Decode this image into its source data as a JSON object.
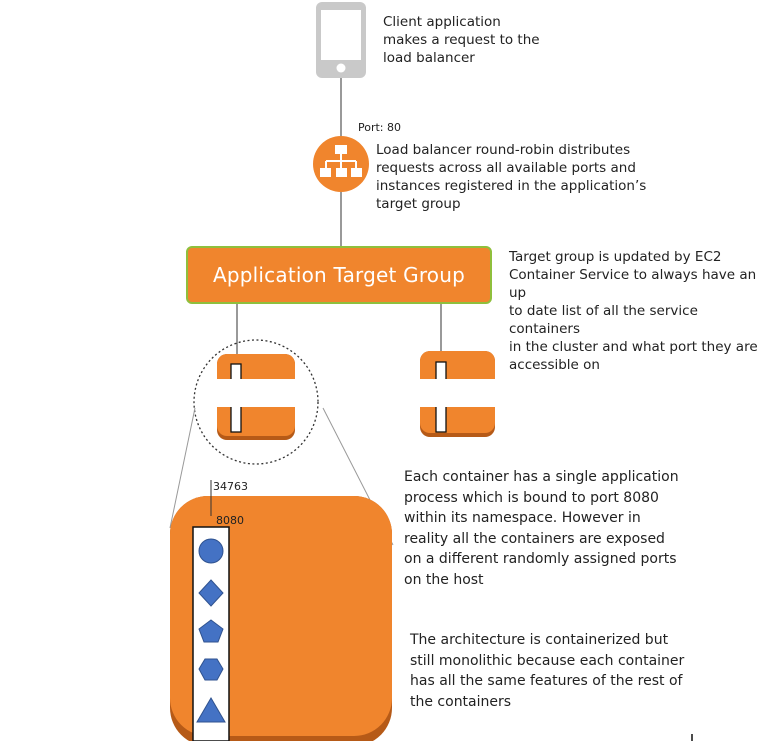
{
  "client": {
    "text": "Client application makes a request to the load balancer",
    "lines": [
      "Client application",
      "makes a request to the",
      "load balancer"
    ]
  },
  "load_balancer": {
    "port_label": "Port: 80",
    "lines": [
      "Load balancer round-robin distributes",
      "requests across all available ports and",
      "instances registered in the application’s",
      "target group"
    ]
  },
  "target_group": {
    "label": "Application Target Group",
    "lines": [
      "Target group is updated by EC2",
      "Container Service to always have an up",
      "to date list of all the service containers",
      "in the cluster and what port they are",
      "accessible on"
    ]
  },
  "container": {
    "host_port": "34763",
    "container_port": "8080",
    "lines": [
      "Each container has a single application",
      "process which is bound to port 8080",
      "within its namespace. However in",
      "reality all the containers are exposed",
      "on a different randomly assigned ports",
      "on the host"
    ]
  },
  "architecture": {
    "lines": [
      "The architecture is containerized but",
      "still monolithic because each container",
      "has all the same features of the rest of",
      "the containers"
    ]
  },
  "icons": [
    "phone-icon",
    "load-balancer-icon",
    "circle-icon",
    "diamond-icon",
    "pentagon-icon",
    "hexagon-icon",
    "triangle-icon"
  ],
  "colors": {
    "orange": "#f0852d",
    "dark_orange": "#b65a17",
    "green_border": "#8fbf3c",
    "feature_blue": "#4472c4",
    "phone_gray": "#c8c8c8"
  }
}
